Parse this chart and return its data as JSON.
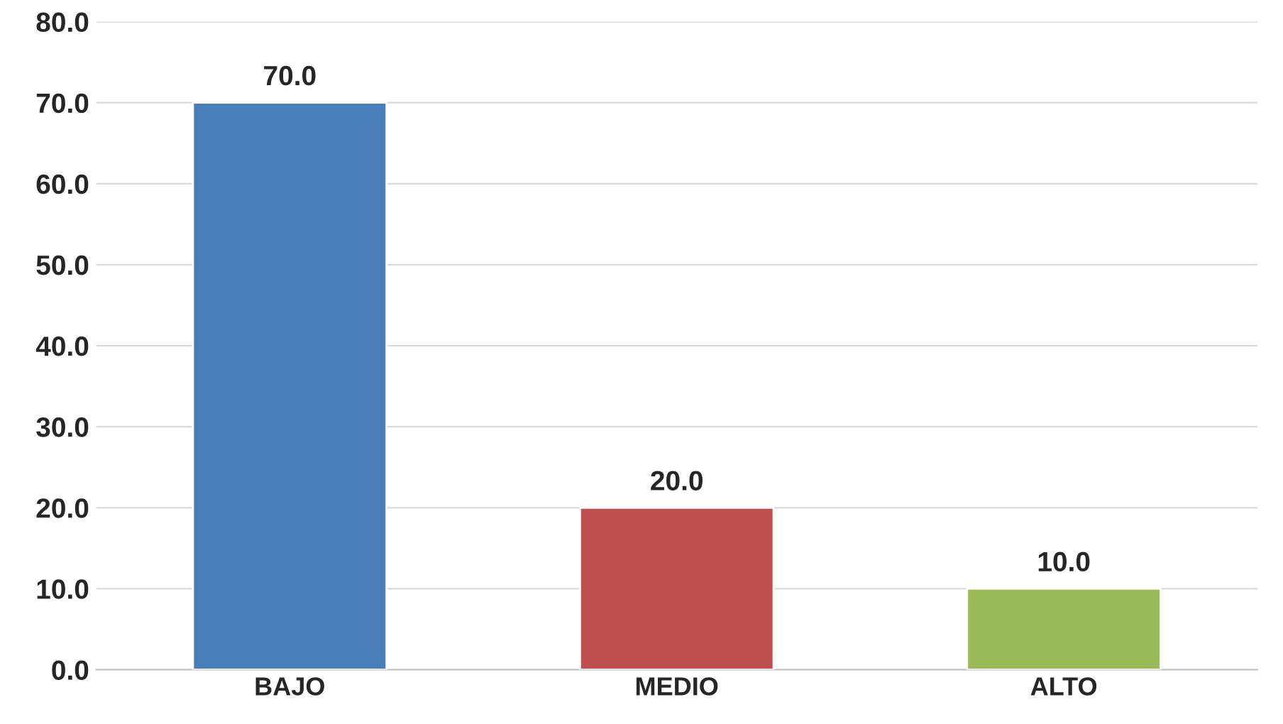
{
  "chart_data": {
    "type": "bar",
    "categories": [
      "BAJO",
      "MEDIO",
      "ALTO"
    ],
    "values": [
      70,
      20,
      10
    ],
    "colors": [
      "#4a7ebb",
      "#c0504d",
      "#9bbb59"
    ],
    "value_labels": [
      "70.0",
      "20.0",
      "10.0"
    ],
    "ylim": [
      0,
      80
    ],
    "yticks": [
      {
        "value": 0,
        "label": "0.0"
      },
      {
        "value": 10,
        "label": "10.0"
      },
      {
        "value": 20,
        "label": "20.0"
      },
      {
        "value": 30,
        "label": "30.0"
      },
      {
        "value": 40,
        "label": "40.0"
      },
      {
        "value": 50,
        "label": "50.0"
      },
      {
        "value": 60,
        "label": "60.0"
      },
      {
        "value": 70,
        "label": "70.0"
      },
      {
        "value": 80,
        "label": "80.0"
      }
    ],
    "grid": "y",
    "legend": false
  }
}
